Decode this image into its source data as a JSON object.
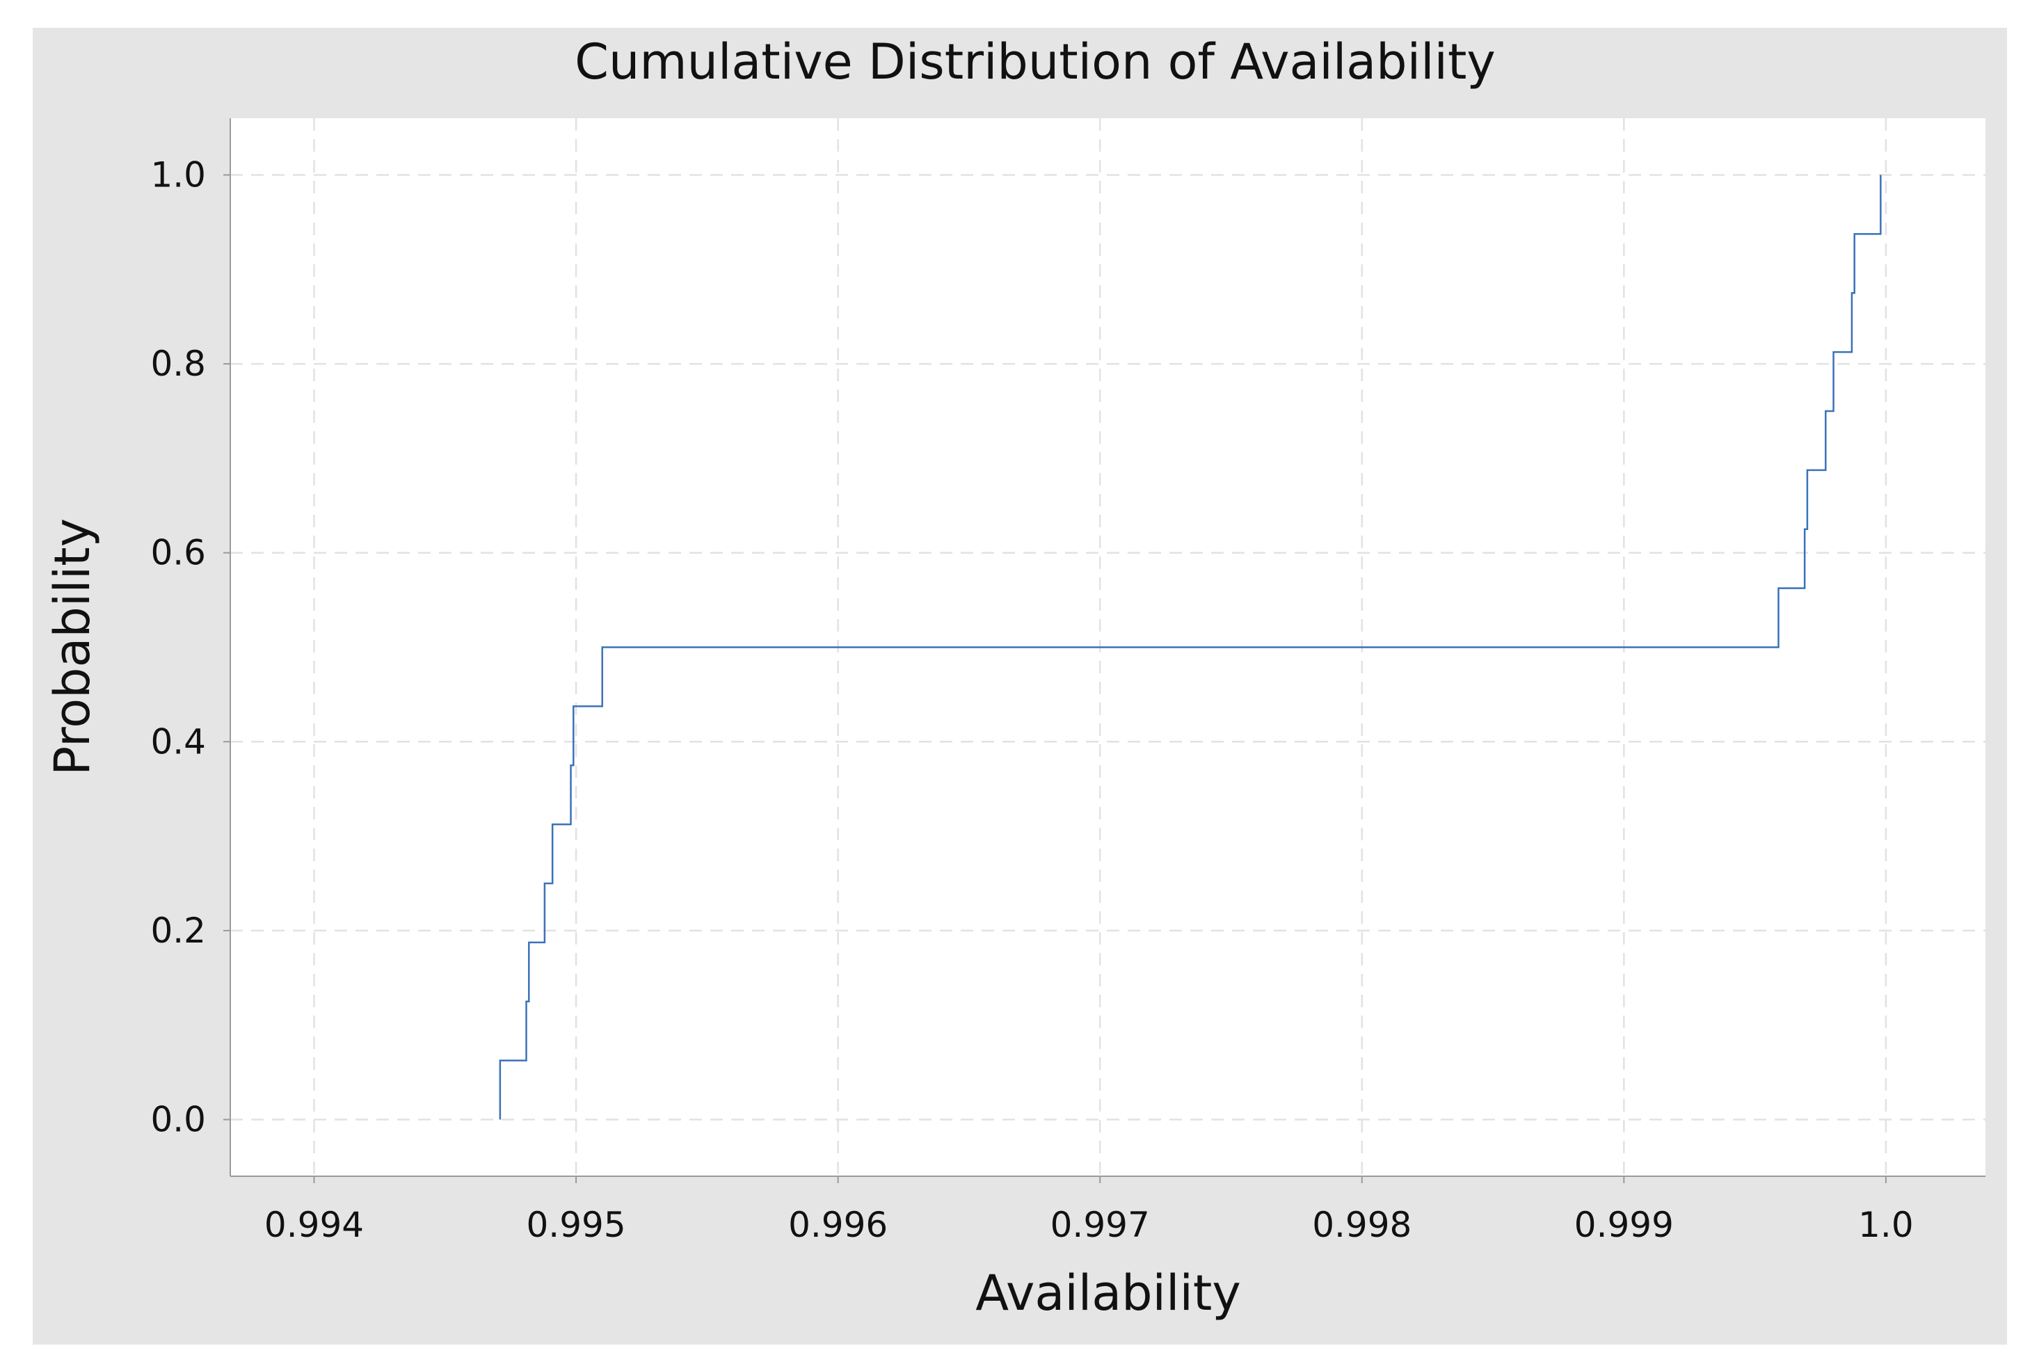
{
  "chart_data": {
    "type": "line",
    "title": "Cumulative Distribution of Availability",
    "xlabel": "Availability",
    "ylabel": "Probability",
    "xlim": [
      0.99368,
      1.00038
    ],
    "ylim": [
      -0.06,
      1.06
    ],
    "x_ticks": [
      0.994,
      0.995,
      0.996,
      0.997,
      0.998,
      0.999,
      1.0
    ],
    "x_tick_labels": [
      "0.994",
      "0.995",
      "0.996",
      "0.997",
      "0.998",
      "0.999",
      "1.0"
    ],
    "y_ticks": [
      0.0,
      0.2,
      0.4,
      0.6,
      0.8,
      1.0
    ],
    "y_tick_labels": [
      "0.0",
      "0.2",
      "0.4",
      "0.6",
      "0.8",
      "1.0"
    ],
    "grid": true,
    "legend": "none",
    "series": [
      {
        "color": "#3a72b8",
        "drawstyle": "steps-post",
        "x": [
          0.99471,
          0.99481,
          0.99482,
          0.99488,
          0.99491,
          0.99498,
          0.99499,
          0.9951,
          0.99959,
          0.99969,
          0.9997,
          0.99977,
          0.9998,
          0.99987,
          0.99988,
          0.99998
        ],
        "y": [
          0.0625,
          0.125,
          0.1875,
          0.25,
          0.3125,
          0.375,
          0.4375,
          0.5,
          0.5625,
          0.625,
          0.6875,
          0.75,
          0.8125,
          0.875,
          0.9375,
          1.0
        ]
      }
    ]
  }
}
